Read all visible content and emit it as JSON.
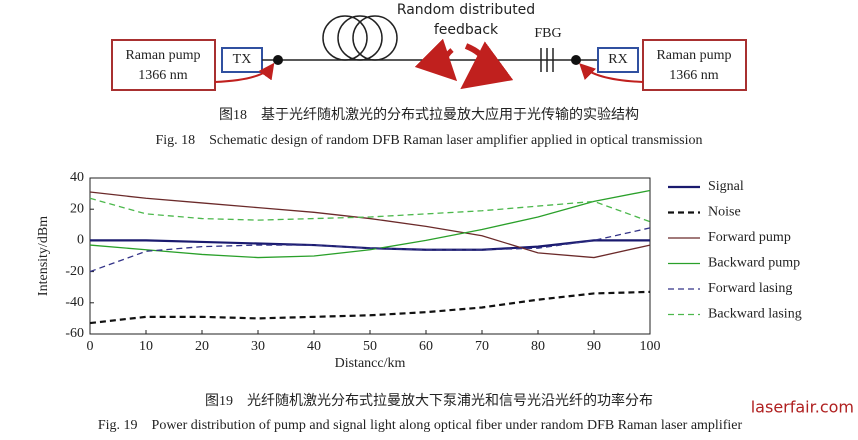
{
  "schematic": {
    "left_pump": [
      "Raman pump",
      "1366 nm"
    ],
    "tx": "TX",
    "feedback": [
      "Random distributed",
      "feedback"
    ],
    "fbg": "FBG",
    "rx": "RX",
    "right_pump": [
      "Raman pump",
      "1366 nm"
    ]
  },
  "captions": {
    "fig18_cn": "图18　基于光纤随机激光的分布式拉曼放大应用于光传输的实验结构",
    "fig18_en": "Fig. 18　Schematic design of random DFB Raman laser amplifier applied in optical transmission",
    "fig19_cn": "图19　光纤随机激光分布式拉曼放大下泵浦光和信号光沿光纤的功率分布",
    "fig19_en": "Fig. 19　Power distribution of pump and signal light along optical fiber under random DFB Raman laser amplifier"
  },
  "watermark": "laserfair.com",
  "chart_data": {
    "type": "line",
    "xlabel": "Distancc/km",
    "ylabel": "Intensity/dBm",
    "x": [
      0,
      10,
      20,
      30,
      40,
      50,
      60,
      70,
      80,
      90,
      100
    ],
    "xlim": [
      0,
      100
    ],
    "xticks": [
      0,
      10,
      20,
      30,
      40,
      50,
      60,
      70,
      80,
      90,
      100
    ],
    "ylim": [
      -60,
      40
    ],
    "yticks": [
      -60,
      -40,
      -20,
      0,
      20,
      40
    ],
    "series": [
      {
        "name": "Signal",
        "color": "#1a1a6e",
        "dash": false,
        "width": 2.2,
        "values": [
          0,
          0,
          -1,
          -2,
          -3,
          -5,
          -6,
          -6,
          -4,
          0,
          0
        ]
      },
      {
        "name": "Noise",
        "color": "#111111",
        "dash": true,
        "width": 2.2,
        "values": [
          -53,
          -49,
          -49,
          -50,
          -49,
          -48,
          -46,
          -43,
          -38,
          -34,
          -33
        ]
      },
      {
        "name": "Forward pump",
        "color": "#6b2a2a",
        "dash": false,
        "width": 1.3,
        "values": [
          31,
          27,
          24,
          21,
          18,
          14,
          9,
          3,
          -8,
          -11,
          -3
        ]
      },
      {
        "name": "Backward pump",
        "color": "#2aa02a",
        "dash": false,
        "width": 1.3,
        "values": [
          -3,
          -6,
          -9,
          -11,
          -10,
          -6,
          0,
          7,
          15,
          25,
          32
        ]
      },
      {
        "name": "Forward lasing",
        "color": "#333388",
        "dash": true,
        "width": 1.3,
        "values": [
          -20,
          -7,
          -4,
          -3,
          -3,
          -5,
          -6,
          -6,
          -5,
          0,
          8
        ]
      },
      {
        "name": "Backward lasing",
        "color": "#4cb84c",
        "dash": true,
        "width": 1.3,
        "values": [
          27,
          17,
          14,
          13,
          14,
          15,
          17,
          19,
          22,
          25,
          12
        ]
      }
    ]
  }
}
